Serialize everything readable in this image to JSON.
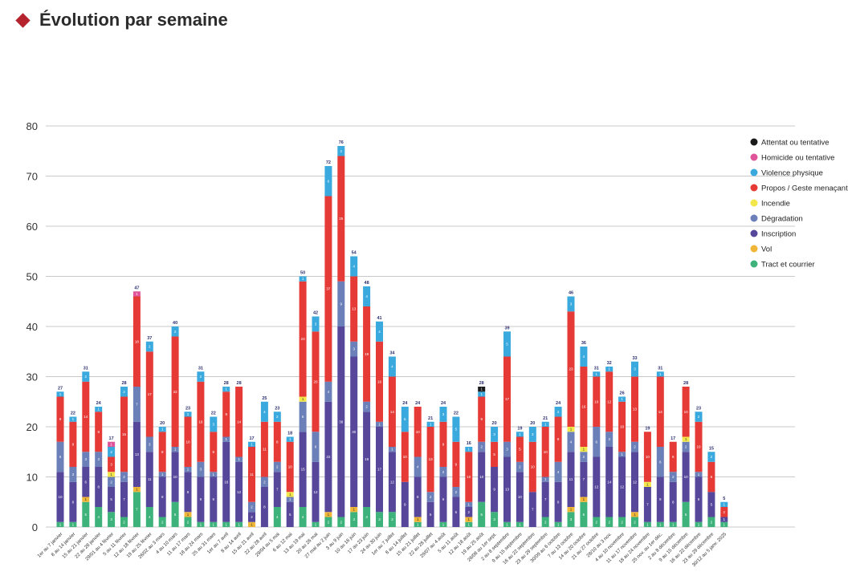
{
  "page": {
    "title": "Évolution par semaine"
  },
  "chart_data": {
    "type": "bar",
    "stacked": true,
    "title": "Évolution par semaine",
    "xlabel": "",
    "ylabel": "",
    "ylim": [
      0,
      80
    ],
    "yticks": [
      0,
      10,
      20,
      30,
      40,
      50,
      60,
      70,
      80
    ],
    "grid": true,
    "legend_position": "right",
    "categories": [
      "1er au 7 janvier",
      "8 au 14 janvier",
      "15 au 21 janvier",
      "22 au 28 janvier",
      "29/01 au 4 février",
      "5 au 11 février",
      "12 au 18 février",
      "19 au 25 février",
      "26/02 au 3 mars",
      "4 au 10 mars",
      "11 au 17 mars",
      "18 au 24 mars",
      "25 au 31 mars",
      "1er au 7 avril",
      "8 au 14 avril",
      "15 au 21 avril",
      "22 au 28 avril",
      "29/04 au 5 mai",
      "6 au 12 mai",
      "13 au 19 mai",
      "20 au 26 mai",
      "27 mai au 2 juin",
      "3 au 9 juin",
      "10 au 16 juin",
      "17 au 23 juin",
      "24 au 30 juin",
      "1er au 7 juillet",
      "8 au 14 juillet",
      "15 au 21 juillet",
      "22 au 28 juillet",
      "29/07 au 4 août",
      "5 au 11 août",
      "12 au 18 août",
      "19 au 25 août",
      "26/08 au 1er sept.",
      "2 au 8 septembre",
      "9 au 15 septembre",
      "16 au 22 septembre",
      "23 au 29 septembre",
      "30/09 au 6 octobre",
      "7 au 13 octobre",
      "14 au 20 octobre",
      "21 au 27 octobre",
      "28/10 au 3 nov.",
      "4 au 10 novembre",
      "11 au 17 novembre",
      "18 au 24 novembre",
      "25 nov. au 1er déc.",
      "2 au 8 décembre",
      "9 au 15 décembre",
      "16 au 22 décembre",
      "23 au 29 décembre",
      "30/12 au 5 janv. 2025"
    ],
    "totals": [
      27,
      22,
      31,
      24,
      17,
      28,
      47,
      37,
      20,
      40,
      23,
      31,
      22,
      28,
      28,
      17,
      25,
      23,
      18,
      50,
      42,
      72,
      76,
      54,
      48,
      41,
      34,
      24,
      24,
      21,
      24,
      22,
      16,
      28,
      20,
      39,
      19,
      20,
      21,
      24,
      46,
      36,
      31,
      32,
      26,
      33,
      19,
      31,
      17,
      28,
      23,
      15,
      5
    ],
    "series": [
      {
        "name": "Attentat ou tentative",
        "color": "#1a1a1a",
        "values": [
          0,
          0,
          0,
          0,
          0,
          0,
          0,
          0,
          0,
          0,
          0,
          0,
          0,
          0,
          0,
          0,
          0,
          0,
          0,
          0,
          0,
          0,
          0,
          0,
          0,
          0,
          0,
          0,
          0,
          0,
          0,
          0,
          0,
          1,
          0,
          0,
          0,
          0,
          0,
          0,
          0,
          0,
          0,
          0,
          0,
          0,
          0,
          0,
          0,
          0,
          0,
          0,
          0
        ]
      },
      {
        "name": "Homicide ou tentative",
        "color": "#e0559a",
        "values": [
          0,
          0,
          0,
          0,
          1,
          0,
          1,
          0,
          0,
          0,
          0,
          0,
          0,
          0,
          0,
          0,
          0,
          0,
          0,
          0,
          0,
          0,
          0,
          0,
          0,
          0,
          0,
          0,
          0,
          0,
          0,
          0,
          0,
          0,
          0,
          0,
          0,
          0,
          0,
          0,
          0,
          0,
          0,
          0,
          0,
          0,
          0,
          0,
          0,
          0,
          0,
          0,
          0
        ]
      },
      {
        "name": "Violence physique",
        "color": "#3aa9de",
        "values": [
          1,
          1,
          2,
          1,
          2,
          2,
          0,
          2,
          1,
          2,
          1,
          2,
          3,
          1,
          0,
          1,
          4,
          2,
          1,
          1,
          3,
          6,
          2,
          4,
          4,
          4,
          4,
          5,
          0,
          1,
          3,
          5,
          1,
          1,
          3,
          5,
          1,
          3,
          1,
          2,
          3,
          4,
          1,
          1,
          1,
          3,
          0,
          1,
          0,
          0,
          2,
          2,
          1
        ]
      },
      {
        "name": "Propos / Geste menaçant",
        "color": "#e63a36",
        "values": [
          9,
          9,
          14,
          8,
          3,
          15,
          18,
          17,
          8,
          22,
          10,
          16,
          8,
          9,
          14,
          11,
          11,
          8,
          10,
          23,
          20,
          37,
          25,
          13,
          19,
          16,
          14,
          10,
          10,
          13,
          9,
          9,
          10,
          9,
          5,
          17,
          5,
          10,
          10,
          9,
          23,
          16,
          10,
          12,
          10,
          13,
          10,
          14,
          6,
          10,
          10,
          6,
          2
        ]
      },
      {
        "name": "Incendie",
        "color": "#f2e64a",
        "values": [
          0,
          0,
          0,
          0,
          1,
          0,
          0,
          0,
          0,
          0,
          0,
          0,
          0,
          0,
          0,
          0,
          0,
          0,
          1,
          1,
          0,
          0,
          0,
          0,
          0,
          0,
          0,
          0,
          0,
          0,
          0,
          0,
          0,
          0,
          0,
          0,
          0,
          0,
          0,
          0,
          1,
          1,
          0,
          0,
          0,
          0,
          1,
          0,
          0,
          1,
          0,
          0,
          0
        ]
      },
      {
        "name": "Dégradation",
        "color": "#6b7fb8",
        "values": [
          6,
          3,
          3,
          3,
          2,
          2,
          7,
          3,
          1,
          1,
          1,
          3,
          1,
          1,
          1,
          2,
          2,
          2,
          1,
          6,
          6,
          4,
          9,
          3,
          2,
          1,
          1,
          0,
          4,
          2,
          2,
          2,
          1,
          2,
          0,
          3,
          2,
          0,
          1,
          4,
          4,
          2,
          6,
          3,
          1,
          2,
          0,
          6,
          2,
          2,
          1,
          0,
          0
        ]
      },
      {
        "name": "Inscription",
        "color": "#56479b",
        "values": [
          10,
          8,
          6,
          8,
          5,
          7,
          13,
          11,
          8,
          10,
          8,
          9,
          9,
          16,
          12,
          2,
          8,
          7,
          5,
          15,
          12,
          22,
          38,
          30,
          19,
          17,
          12,
          9,
          8,
          5,
          9,
          6,
          2,
          10,
          9,
          13,
          10,
          7,
          7,
          8,
          11,
          7,
          12,
          14,
          12,
          12,
          7,
          9,
          8,
          10,
          9,
          5,
          1
        ]
      },
      {
        "name": "Vol",
        "color": "#f0b638",
        "values": [
          0,
          0,
          1,
          0,
          0,
          0,
          1,
          0,
          0,
          0,
          1,
          0,
          0,
          0,
          0,
          1,
          0,
          0,
          0,
          0,
          0,
          1,
          0,
          1,
          0,
          0,
          0,
          0,
          1,
          0,
          0,
          0,
          1,
          0,
          0,
          0,
          0,
          0,
          0,
          0,
          1,
          1,
          0,
          0,
          0,
          1,
          0,
          0,
          0,
          0,
          0,
          0,
          0
        ]
      },
      {
        "name": "Tract et courrier",
        "color": "#3db27b",
        "values": [
          1,
          1,
          5,
          4,
          3,
          2,
          7,
          4,
          2,
          5,
          2,
          1,
          1,
          1,
          1,
          0,
          0,
          4,
          0,
          4,
          1,
          2,
          2,
          3,
          4,
          3,
          3,
          0,
          1,
          0,
          1,
          0,
          1,
          5,
          3,
          1,
          1,
          0,
          2,
          1,
          3,
          5,
          2,
          2,
          2,
          2,
          1,
          1,
          1,
          5,
          1,
          2,
          1
        ]
      }
    ]
  }
}
